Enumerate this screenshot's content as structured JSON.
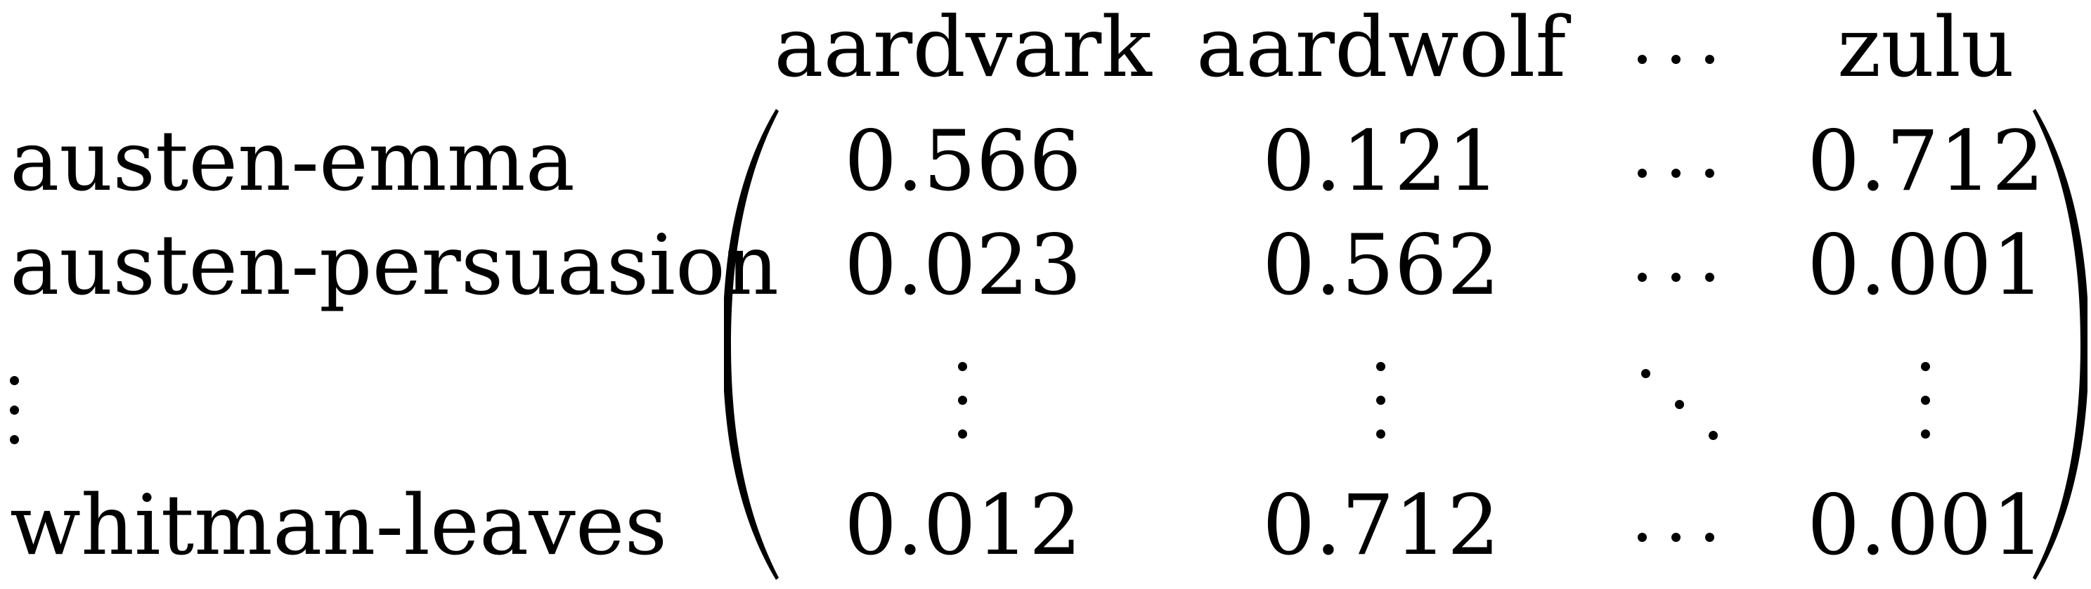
{
  "columns": {
    "c1": "aardvark",
    "c2": "aardwolf",
    "c3": "...",
    "c4": "zulu"
  },
  "rows": {
    "r1": {
      "label": "austen-emma",
      "v1": "0.566",
      "v2": "0.121",
      "v3": "...",
      "v4": "0.712"
    },
    "r2": {
      "label": "austen-persuasion",
      "v1": "0.023",
      "v2": "0.562",
      "v3": "...",
      "v4": "0.001"
    },
    "r3": {
      "label": "⋮",
      "v1": "⋮",
      "v2": "⋮",
      "v3": "⋱",
      "v4": "⋮"
    },
    "r4": {
      "label": "whitman-leaves",
      "v1": "0.012",
      "v2": "0.712",
      "v3": "...",
      "v4": "0.001"
    }
  }
}
